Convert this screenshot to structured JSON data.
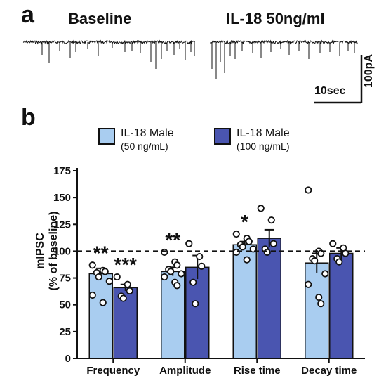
{
  "panel_a": {
    "label": "a",
    "conditions": [
      "Baseline",
      "IL-18 50ng/ml"
    ],
    "scale_bar": {
      "time_label": "10sec",
      "current_label": "100pA"
    }
  },
  "panel_b": {
    "label": "b"
  },
  "chart_data": {
    "type": "bar",
    "categories": [
      "Frequency",
      "Amplitude",
      "Rise time",
      "Decay time"
    ],
    "ylabel_line1": "mIPSC",
    "ylabel_line2": "(% of baseline)",
    "ylim": [
      0,
      175
    ],
    "yticks": [
      0,
      25,
      50,
      75,
      100,
      125,
      150,
      175
    ],
    "reference_line": 100,
    "grid": false,
    "legend_position": "top",
    "series": [
      {
        "name": "IL-18 Male",
        "sub": "(50 ng/mL)",
        "color": "#a9cdf0",
        "values": [
          79,
          81,
          106,
          89
        ],
        "sem": [
          5,
          4,
          3,
          9
        ],
        "points": [
          [
            87,
            82,
            81,
            80,
            76,
            72,
            59,
            52
          ],
          [
            99,
            90,
            87,
            83,
            81,
            79,
            76,
            71,
            68
          ],
          [
            116,
            112,
            109,
            106,
            104,
            102,
            99,
            92,
            109
          ],
          [
            157,
            100,
            98,
            93,
            91,
            79,
            69,
            57,
            51
          ]
        ],
        "significance": [
          "**",
          "**",
          "*",
          ""
        ]
      },
      {
        "name": "IL-18 Male",
        "sub": "(100 ng/mL)",
        "color": "#4a55b0",
        "values": [
          66,
          85,
          112,
          98
        ],
        "sem": [
          3,
          11,
          8,
          5
        ],
        "points": [
          [
            76,
            69,
            63,
            58,
            56
          ],
          [
            107,
            95,
            86,
            71,
            51
          ],
          [
            140,
            129,
            107,
            102,
            99
          ],
          [
            107,
            103,
            98,
            93,
            90
          ]
        ],
        "significance": [
          "***",
          "",
          "",
          ""
        ]
      }
    ]
  }
}
